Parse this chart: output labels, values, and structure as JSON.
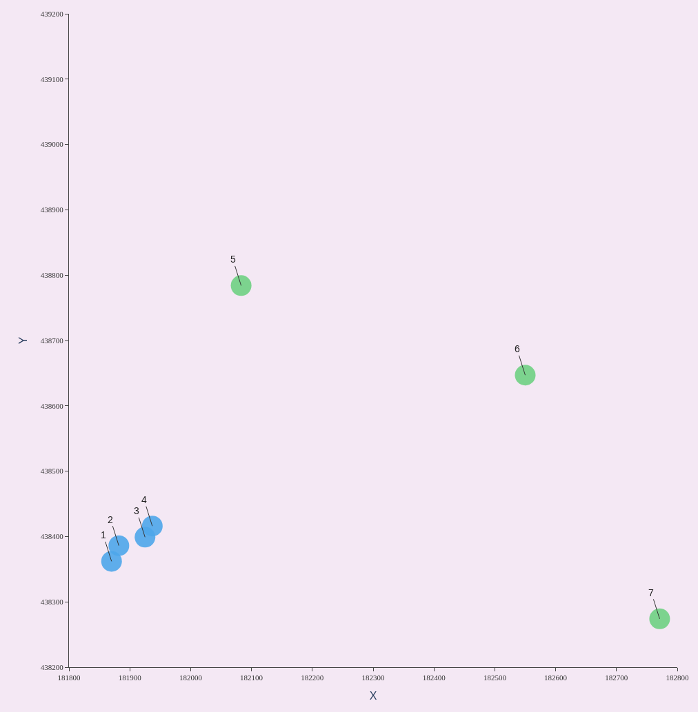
{
  "chart_data": {
    "type": "scatter",
    "xlabel": "X",
    "ylabel": "Y",
    "series": [
      {
        "color": "#4ea6ea",
        "x": [
          181870,
          181882,
          181925,
          181937
        ],
        "values": [
          438362,
          438386,
          438399,
          438416
        ]
      },
      {
        "color": "#6fd083",
        "x": [
          182083,
          182550,
          182771
        ],
        "values": [
          438784,
          438647,
          438274
        ]
      }
    ],
    "annotations": [
      {
        "text": "1",
        "x": 181870,
        "y": 438362
      },
      {
        "text": "2",
        "x": 181882,
        "y": 438386
      },
      {
        "text": "3",
        "x": 181925,
        "y": 438399
      },
      {
        "text": "4",
        "x": 181937,
        "y": 438416
      },
      {
        "text": "5",
        "x": 182083,
        "y": 438784
      },
      {
        "text": "6",
        "x": 182550,
        "y": 438647
      },
      {
        "text": "7",
        "x": 182771,
        "y": 438274
      }
    ],
    "xlim": [
      181800,
      182800
    ],
    "xticks": [
      181800,
      181900,
      182000,
      182100,
      182200,
      182300,
      182400,
      182500,
      182600,
      182700,
      182800
    ],
    "ylim": [
      438200,
      439200
    ],
    "yticks": [
      438200,
      438300,
      438400,
      438500,
      438600,
      438700,
      438800,
      438900,
      439000,
      439100,
      439200
    ],
    "grid": false,
    "legend": false,
    "marker": "circle"
  }
}
